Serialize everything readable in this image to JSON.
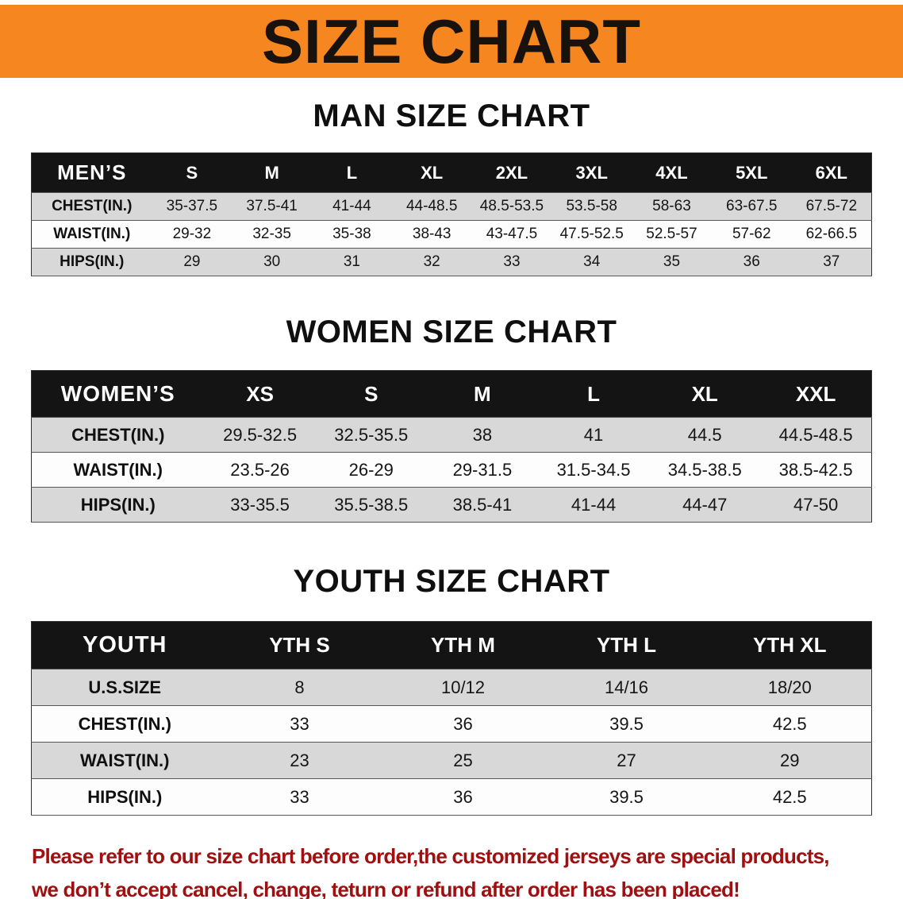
{
  "banner": {
    "title": "SIZE CHART"
  },
  "sections": [
    {
      "heading": "MAN SIZE CHART",
      "table": {
        "label": "MEN’S",
        "columns": [
          "S",
          "M",
          "L",
          "XL",
          "2XL",
          "3XL",
          "4XL",
          "5XL",
          "6XL"
        ],
        "rows": [
          {
            "label": "CHEST(IN.)",
            "values": [
              "35-37.5",
              "37.5-41",
              "41-44",
              "44-48.5",
              "48.5-53.5",
              "53.5-58",
              "58-63",
              "63-67.5",
              "67.5-72"
            ]
          },
          {
            "label": "WAIST(IN.)",
            "values": [
              "29-32",
              "32-35",
              "35-38",
              "38-43",
              "43-47.5",
              "47.5-52.5",
              "52.5-57",
              "57-62",
              "62-66.5"
            ]
          },
          {
            "label": "HIPS(IN.)",
            "values": [
              "29",
              "30",
              "31",
              "32",
              "33",
              "34",
              "35",
              "36",
              "37"
            ]
          }
        ]
      }
    },
    {
      "heading": "WOMEN SIZE CHART",
      "table": {
        "label": "WOMEN’S",
        "columns": [
          "XS",
          "S",
          "M",
          "L",
          "XL",
          "XXL"
        ],
        "rows": [
          {
            "label": "CHEST(IN.)",
            "values": [
              "29.5-32.5",
              "32.5-35.5",
              "38",
              "41",
              "44.5",
              "44.5-48.5"
            ]
          },
          {
            "label": "WAIST(IN.)",
            "values": [
              "23.5-26",
              "26-29",
              "29-31.5",
              "31.5-34.5",
              "34.5-38.5",
              "38.5-42.5"
            ]
          },
          {
            "label": "HIPS(IN.)",
            "values": [
              "33-35.5",
              "35.5-38.5",
              "38.5-41",
              "41-44",
              "44-47",
              "47-50"
            ]
          }
        ]
      }
    },
    {
      "heading": "YOUTH SIZE CHART",
      "table": {
        "label": "YOUTH",
        "columns": [
          "YTH S",
          "YTH M",
          "YTH L",
          "YTH XL"
        ],
        "rows": [
          {
            "label": "U.S.SIZE",
            "values": [
              "8",
              "10/12",
              "14/16",
              "18/20"
            ]
          },
          {
            "label": "CHEST(IN.)",
            "values": [
              "33",
              "36",
              "39.5",
              "42.5"
            ]
          },
          {
            "label": "WAIST(IN.)",
            "values": [
              "23",
              "25",
              "27",
              "29"
            ]
          },
          {
            "label": "HIPS(IN.)",
            "values": [
              "33",
              "36",
              "39.5",
              "42.5"
            ]
          }
        ]
      }
    }
  ],
  "footer": {
    "line1": "Please refer to our size chart before order,the customized jerseys are special products,",
    "line2": "we don’t accept cancel, change, teturn or refund after order has been placed!"
  },
  "colors": {
    "banner_bg": "#F6861F",
    "table_header_bg": "#141414",
    "row_alt_bg": "#D8D8D8",
    "footer_text": "#A01010"
  }
}
